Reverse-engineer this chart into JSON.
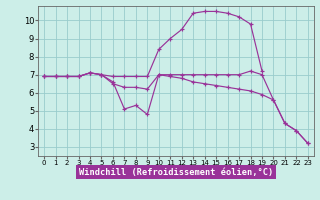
{
  "bg_color": "#cceee8",
  "grid_color": "#99cccc",
  "line_color": "#993399",
  "xlim": [
    -0.5,
    23.5
  ],
  "ylim": [
    2.5,
    10.8
  ],
  "yticks": [
    3,
    4,
    5,
    6,
    7,
    8,
    9,
    10
  ],
  "xticks": [
    0,
    1,
    2,
    3,
    4,
    5,
    6,
    7,
    8,
    9,
    10,
    11,
    12,
    13,
    14,
    15,
    16,
    17,
    18,
    19,
    20,
    21,
    22,
    23
  ],
  "xlabel": "Windchill (Refroidissement éolien,°C)",
  "series": [
    {
      "x": [
        0,
        1,
        2,
        3,
        4,
        5,
        6,
        7,
        8,
        9,
        10,
        11,
        12,
        13,
        14,
        15,
        16,
        17,
        18,
        19,
        20,
        21,
        22,
        23
      ],
      "y": [
        6.9,
        6.9,
        6.9,
        6.9,
        7.1,
        7.0,
        6.6,
        5.1,
        5.3,
        4.8,
        7.0,
        7.0,
        7.0,
        7.0,
        7.0,
        7.0,
        7.0,
        7.0,
        7.2,
        7.0,
        5.6,
        4.3,
        3.9,
        3.2
      ]
    },
    {
      "x": [
        0,
        1,
        2,
        3,
        4,
        5,
        6,
        7,
        8,
        9,
        10,
        11,
        12,
        13,
        14,
        15,
        16,
        17,
        18,
        19,
        20,
        21,
        22,
        23
      ],
      "y": [
        6.9,
        6.9,
        6.9,
        6.9,
        7.1,
        7.0,
        6.5,
        6.3,
        6.3,
        6.2,
        7.0,
        6.9,
        6.8,
        6.6,
        6.5,
        6.4,
        6.3,
        6.2,
        6.1,
        5.9,
        5.6,
        4.3,
        3.9,
        3.2
      ]
    },
    {
      "x": [
        0,
        1,
        2,
        3,
        4,
        5,
        6,
        7,
        8,
        9,
        10,
        11,
        12,
        13,
        14,
        15,
        16,
        17,
        18,
        19
      ],
      "y": [
        6.9,
        6.9,
        6.9,
        6.9,
        7.1,
        7.0,
        6.9,
        6.9,
        6.9,
        6.9,
        8.4,
        9.0,
        9.5,
        10.4,
        10.5,
        10.5,
        10.4,
        10.2,
        9.8,
        7.2
      ]
    }
  ]
}
